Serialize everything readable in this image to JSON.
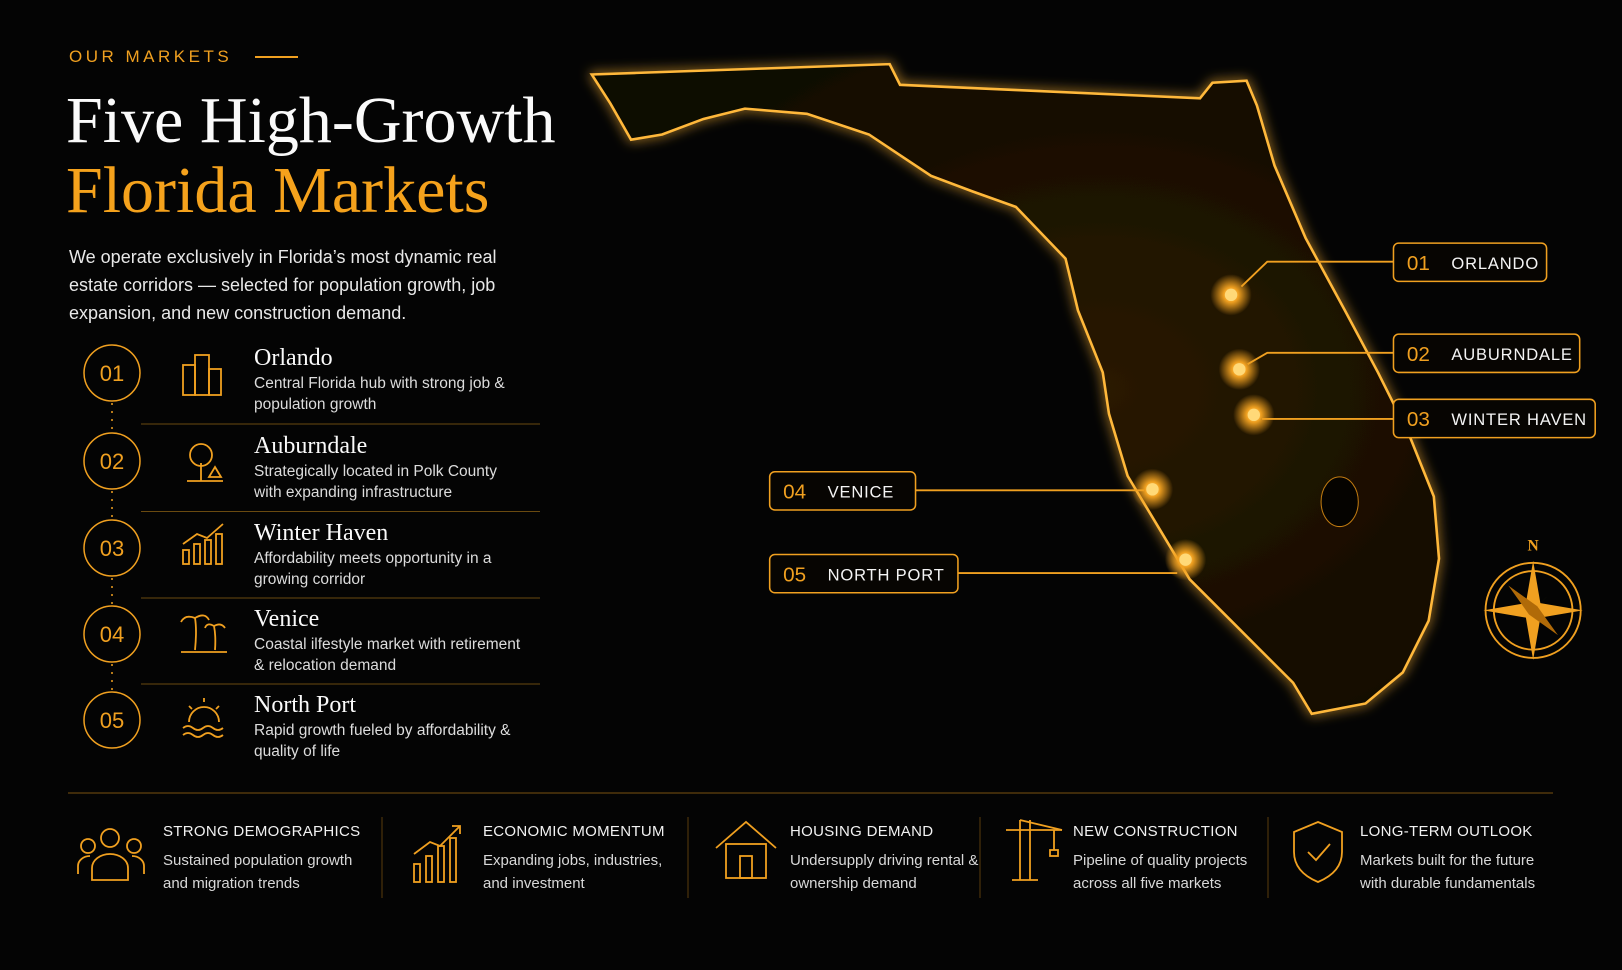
{
  "header": {
    "eyebrow": "OUR MARKETS",
    "title_line1": "Five High-Growth",
    "title_line2": "Florida Markets",
    "intro": "We operate exclusively in Florida’s most dynamic real estate corridors — selected for population growth, job expansion, and new construction demand."
  },
  "markets": [
    {
      "number": "01",
      "name": "Orlando",
      "description": "Central Florida hub with strong job & population growth"
    },
    {
      "number": "02",
      "name": "Auburndale",
      "description": "Strategically located in Polk County with expanding infrastructure"
    },
    {
      "number": "03",
      "name": "Winter Haven",
      "description": "Affordability meets opportunity in a growing corridor"
    },
    {
      "number": "04",
      "name": "Venice",
      "description": "Coastal ilfestyle market with retirement & relocation demand"
    },
    {
      "number": "05",
      "name": "North Port",
      "description": "Rapid growth fueled by affordability & quality of life"
    }
  ],
  "map_labels": [
    {
      "number": "01",
      "name": "ORLANDO"
    },
    {
      "number": "02",
      "name": "AUBURNDALE"
    },
    {
      "number": "03",
      "name": "WINTER HAVEN"
    },
    {
      "number": "04",
      "name": "VENICE"
    },
    {
      "number": "05",
      "name": "NORTH PORT"
    }
  ],
  "compass": "N",
  "pillars": [
    {
      "title": "STRONG DEMOGRAPHICS",
      "description": "Sustained population growth and migration trends"
    },
    {
      "title": "ECONOMIC MOMENTUM",
      "description": "Expanding jobs, industries, and investment"
    },
    {
      "title": "HOUSING DEMAND",
      "description": "Undersupply driving rental & ownership demand"
    },
    {
      "title": "NEW CONSTRUCTION",
      "description": "Pipeline of quality projects across all five markets"
    },
    {
      "title": "LONG-TERM OUTLOOK",
      "description": "Markets built for the future with durable fundamentals"
    }
  ]
}
